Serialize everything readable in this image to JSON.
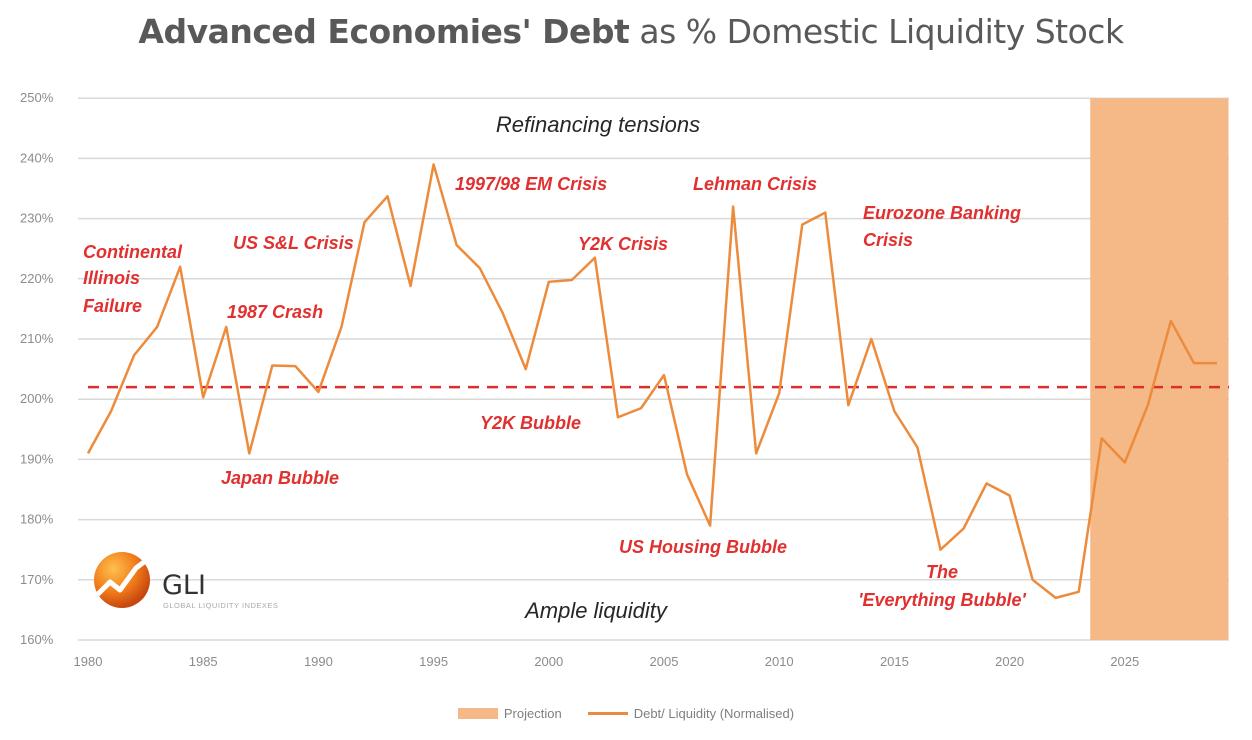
{
  "chart_data": {
    "type": "line",
    "title_bold": "Advanced Economies' Debt",
    "title_rest": "as % Domestic Liquidity Stock",
    "xlim": [
      1980,
      2029
    ],
    "ylim": [
      160,
      250
    ],
    "y_ticks": [
      "160%",
      "170%",
      "180%",
      "190%",
      "200%",
      "210%",
      "220%",
      "230%",
      "240%",
      "250%"
    ],
    "x_ticks": [
      "1980",
      "1985",
      "1990",
      "1995",
      "2000",
      "2005",
      "2010",
      "2015",
      "2020",
      "2025"
    ],
    "grid": true,
    "legend_position": "bottom",
    "series": [
      {
        "name": "Debt/ Liquidity (Normalised)",
        "color": "#ed8b3c",
        "x": [
          1980,
          1981,
          1982,
          1983,
          1984,
          1985,
          1986,
          1987,
          1988,
          1989,
          1990,
          1991,
          1992,
          1993,
          1994,
          1995,
          1996,
          1997,
          1998,
          1999,
          2000,
          2001,
          2002,
          2003,
          2004,
          2005,
          2006,
          2007,
          2008,
          2009,
          2010,
          2011,
          2012,
          2013,
          2014,
          2015,
          2016,
          2017,
          2018,
          2019,
          2020,
          2021,
          2022,
          2023,
          2024,
          2025,
          2026,
          2027,
          2028,
          2029
        ],
        "values": [
          191,
          198,
          207.3,
          212,
          222,
          200.3,
          212,
          191,
          205.6,
          205.5,
          201.2,
          212,
          229.4,
          233.7,
          218.8,
          239,
          225.6,
          221.8,
          214.3,
          205,
          219.5,
          219.8,
          223.5,
          197,
          198.5,
          204,
          187.5,
          179,
          232,
          191,
          201,
          229,
          231,
          199,
          210,
          198,
          192,
          175,
          178.5,
          186,
          184,
          170,
          167,
          168,
          193.5,
          189.5,
          199,
          213,
          206,
          206
        ]
      }
    ],
    "reference_line": {
      "value": 202,
      "color": "#d9302b",
      "style": "dashed"
    },
    "projection": {
      "name": "Projection",
      "from": 2023.5,
      "to": 2029.5,
      "color": "#f5b887"
    },
    "zones": {
      "top": "Refinancing tensions",
      "bottom": "Ample liquidity"
    },
    "annotations": [
      "Continental",
      "Illinois",
      "Failure",
      "US S&L Crisis",
      "1987 Crash",
      "Japan Bubble",
      "1997/98 EM Crisis",
      "Y2K Crisis",
      "Y2K Bubble",
      "Lehman Crisis",
      "US Housing Bubble",
      "Eurozone Banking",
      "Crisis",
      "The",
      "'Everything Bubble'"
    ]
  },
  "logo": {
    "name": "GLI",
    "tagline": "GLOBAL LIQUIDITY INDEXES"
  }
}
